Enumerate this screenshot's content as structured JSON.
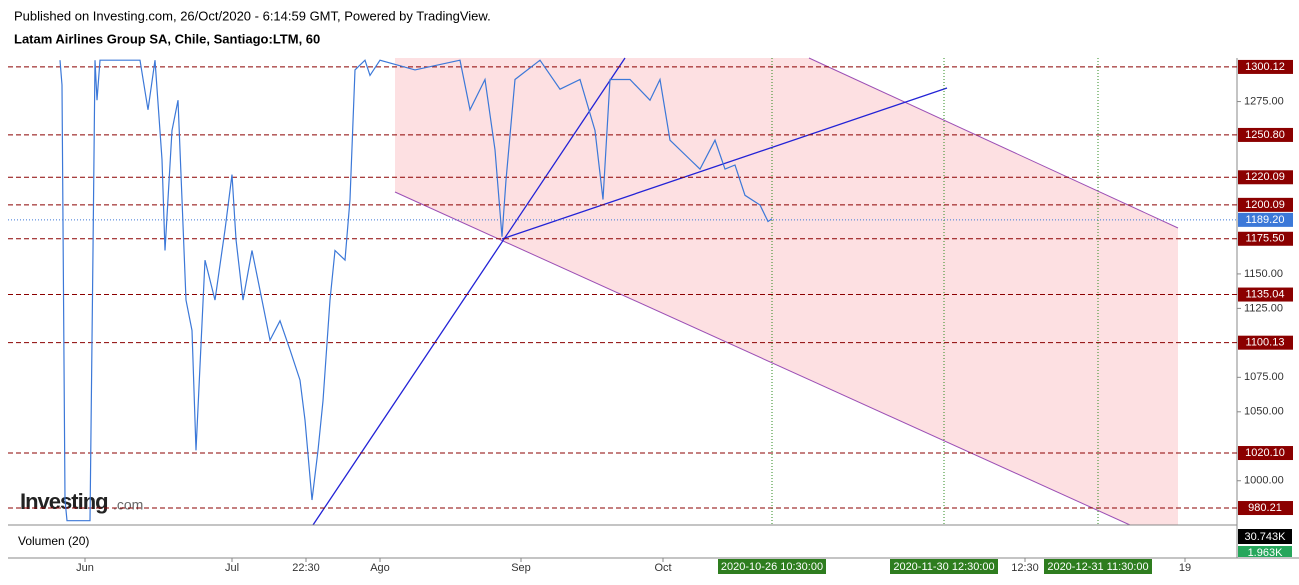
{
  "header": {
    "published": "Published on Investing.com, 26/Oct/2020 - 6:14:59 GMT, Powered by TradingView.",
    "logo": "Investing",
    "logo_suffix": ".com"
  },
  "chart_data": {
    "type": "line",
    "title": "Latam Airlines Group SA, Chile, Santiago:LTM, 60",
    "series": [
      {
        "color": "#3c78d8",
        "x": [
          52,
          54,
          57,
          59,
          82,
          85,
          87,
          89,
          92,
          132,
          140,
          147,
          154,
          157,
          164,
          170,
          174,
          178,
          184,
          188,
          197,
          207,
          217,
          224,
          228,
          235,
          244,
          254,
          262,
          272,
          282,
          292,
          297,
          304,
          310,
          315,
          322,
          327,
          337,
          342,
          347,
          357,
          362,
          372,
          407,
          452,
          462,
          477,
          487,
          494,
          498,
          507,
          532,
          552,
          572,
          587,
          595,
          602,
          622,
          642,
          652,
          662,
          682,
          692,
          707,
          717,
          727,
          737,
          752,
          760,
          764
        ],
        "values": [
          1305,
          1287,
          986,
          971,
          971,
          1167,
          1305,
          1276,
          1305,
          1305,
          1269,
          1305,
          1233,
          1167,
          1254,
          1276,
          1204,
          1131,
          1109,
          1022,
          1160,
          1131,
          1182,
          1222,
          1175,
          1131,
          1167,
          1131,
          1102,
          1116,
          1095,
          1073,
          1044,
          986,
          1022,
          1058,
          1131,
          1167,
          1160,
          1204,
          1298,
          1305,
          1294,
          1305,
          1298,
          1305,
          1269,
          1291,
          1240,
          1177,
          1218,
          1291,
          1305,
          1284,
          1291,
          1254,
          1204,
          1291,
          1291,
          1276,
          1291,
          1247,
          1233,
          1226,
          1247,
          1226,
          1229,
          1207,
          1200,
          1188,
          1190
        ]
      }
    ],
    "xlim": [
      0,
      1229
    ],
    "ylim": [
      967.9,
      1306.6
    ],
    "yticks": [
      {
        "value": 1275,
        "label": "1275.00"
      },
      {
        "value": 1150,
        "label": "1150.00"
      },
      {
        "value": 1125,
        "label": "1125.00"
      },
      {
        "value": 1075,
        "label": "1075.00"
      },
      {
        "value": 1050,
        "label": "1050.00"
      },
      {
        "value": 1000,
        "label": "1000.00"
      }
    ],
    "xticks": [
      {
        "value": 77,
        "label": "Jun"
      },
      {
        "value": 224,
        "label": "Jul"
      },
      {
        "value": 298,
        "label": "22:30"
      },
      {
        "value": 372,
        "label": "Ago"
      },
      {
        "value": 513,
        "label": "Sep"
      },
      {
        "value": 655,
        "label": "Oct"
      },
      {
        "value": 1017,
        "label": "12:30"
      },
      {
        "value": 1177,
        "label": "19"
      }
    ],
    "levels": [
      {
        "value": 1300.12,
        "label": "1300.12"
      },
      {
        "value": 1250.8,
        "label": "1250.80"
      },
      {
        "value": 1220.09,
        "label": "1220.09"
      },
      {
        "value": 1200.09,
        "label": "1200.09"
      },
      {
        "value": 1175.5,
        "label": "1175.50"
      },
      {
        "value": 1135.04,
        "label": "1135.04"
      },
      {
        "value": 1100.13,
        "label": "1100.13"
      },
      {
        "value": 1020.1,
        "label": "1020.10"
      },
      {
        "value": 980.21,
        "label": "980.21"
      }
    ],
    "level_color": "#8b0000",
    "last_price": {
      "value": 1189.2,
      "label": "1189.20"
    },
    "date_markers": [
      {
        "x": 764,
        "label": "2020-10-26 10:30:00"
      },
      {
        "x": 936,
        "label": "2020-11-30 12:30:00"
      },
      {
        "x": 1090,
        "label": "2020-12-31 11:30:00"
      }
    ],
    "volume_label": "Volumen (20)",
    "volume_value": "30.743K",
    "volume_last": "1.963K"
  }
}
